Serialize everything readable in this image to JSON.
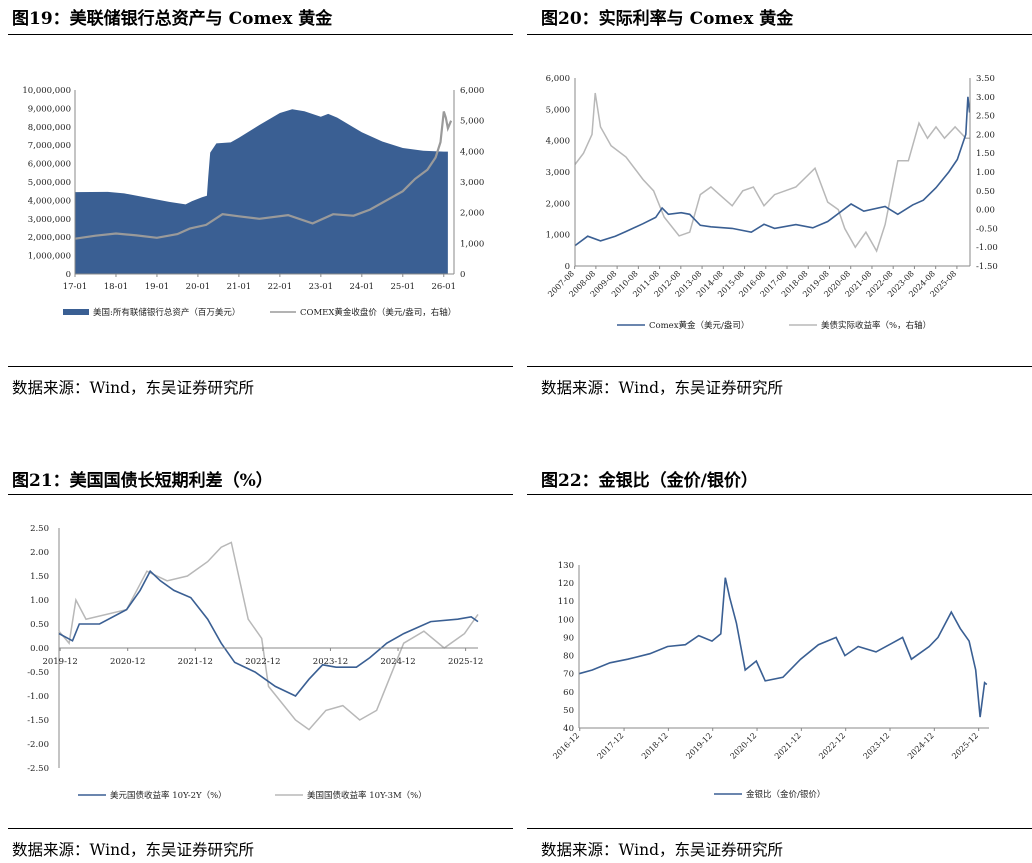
{
  "source": "数据来源：Wind，东吴证券研究所",
  "colors": {
    "navy": "#3a5f93",
    "gray": "#9a9a9a",
    "lightgray": "#b8b8b8"
  },
  "chart_data": [
    {
      "id": "fig19",
      "title": "图19：美联储银行总资产与 Comex 黄金",
      "type": "area",
      "x": [
        "17-01",
        "18-01",
        "19-01",
        "20-01",
        "21-01",
        "22-01",
        "23-01",
        "24-01",
        "25-01",
        "26-01"
      ],
      "xlim": [
        2017.0,
        2026.25
      ],
      "y_left": {
        "range": [
          0,
          10000000
        ],
        "ticks": [
          "0",
          "1,000,000",
          "2,000,000",
          "3,000,000",
          "4,000,000",
          "5,000,000",
          "6,000,000",
          "7,000,000",
          "8,000,000",
          "9,000,000",
          "10,000,000"
        ]
      },
      "y_right": {
        "range": [
          0,
          6000
        ],
        "ticks": [
          "0",
          "1,000",
          "2,000",
          "3,000",
          "4,000",
          "5,000",
          "6,000"
        ]
      },
      "series": [
        {
          "name": "美国:所有联储银行总资产（百万美元）",
          "axis": "left",
          "points": [
            [
              2017.0,
              4450000
            ],
            [
              2017.8,
              4460000
            ],
            [
              2018.2,
              4380000
            ],
            [
              2018.8,
              4130000
            ],
            [
              2019.3,
              3920000
            ],
            [
              2019.7,
              3780000
            ],
            [
              2019.85,
              3950000
            ],
            [
              2020.1,
              4170000
            ],
            [
              2020.22,
              4250000
            ],
            [
              2020.25,
              5250000
            ],
            [
              2020.3,
              6600000
            ],
            [
              2020.45,
              7100000
            ],
            [
              2020.8,
              7150000
            ],
            [
              2021.0,
              7400000
            ],
            [
              2021.5,
              8100000
            ],
            [
              2022.0,
              8750000
            ],
            [
              2022.3,
              8950000
            ],
            [
              2022.6,
              8850000
            ],
            [
              2023.0,
              8550000
            ],
            [
              2023.18,
              8700000
            ],
            [
              2023.4,
              8500000
            ],
            [
              2024.0,
              7700000
            ],
            [
              2024.5,
              7200000
            ],
            [
              2025.0,
              6850000
            ],
            [
              2025.5,
              6700000
            ],
            [
              2026.0,
              6650000
            ],
            [
              2026.1,
              6650000
            ]
          ]
        },
        {
          "name": "COMEX黄金收盘价（美元/盎司，右轴）",
          "axis": "right",
          "points": [
            [
              2017.0,
              1150
            ],
            [
              2017.5,
              1250
            ],
            [
              2018.0,
              1320
            ],
            [
              2018.5,
              1260
            ],
            [
              2019.0,
              1180
            ],
            [
              2019.5,
              1300
            ],
            [
              2019.8,
              1480
            ],
            [
              2020.2,
              1600
            ],
            [
              2020.6,
              1950
            ],
            [
              2021.0,
              1880
            ],
            [
              2021.5,
              1800
            ],
            [
              2022.2,
              1920
            ],
            [
              2022.8,
              1650
            ],
            [
              2023.3,
              1950
            ],
            [
              2023.8,
              1900
            ],
            [
              2024.2,
              2100
            ],
            [
              2024.6,
              2400
            ],
            [
              2025.0,
              2700
            ],
            [
              2025.3,
              3100
            ],
            [
              2025.6,
              3400
            ],
            [
              2025.8,
              3800
            ],
            [
              2025.92,
              4300
            ],
            [
              2026.0,
              5300
            ],
            [
              2026.05,
              5100
            ],
            [
              2026.1,
              4750
            ],
            [
              2026.18,
              5000
            ]
          ]
        }
      ],
      "legend_position": "bottom"
    },
    {
      "id": "fig20",
      "title": "图20：实际利率与 Comex 黄金",
      "type": "line",
      "x": [
        "2007-08",
        "2008-08",
        "2009-08",
        "2010-08",
        "2011-08",
        "2012-08",
        "2013-08",
        "2014-08",
        "2015-08",
        "2016-08",
        "2017-08",
        "2018-08",
        "2019-08",
        "2020-08",
        "2021-08",
        "2022-08",
        "2023-08",
        "2024-08",
        "2025-08"
      ],
      "xlim": [
        2007.6,
        2026.2
      ],
      "y_left": {
        "range": [
          0,
          6000
        ],
        "ticks": [
          "0",
          "1,000",
          "2,000",
          "3,000",
          "4,000",
          "5,000",
          "6,000"
        ]
      },
      "y_right": {
        "range": [
          -1.5,
          3.5
        ],
        "ticks": [
          "-1.50",
          "-1.00",
          "-0.50",
          "0.00",
          "0.50",
          "1.00",
          "1.50",
          "2.00",
          "2.50",
          "3.00",
          "3.50"
        ]
      },
      "series": [
        {
          "name": "Comex黄金（美元/盎司）",
          "axis": "left",
          "points": [
            [
              2007.6,
              650
            ],
            [
              2008.2,
              950
            ],
            [
              2008.8,
              800
            ],
            [
              2009.5,
              950
            ],
            [
              2010.0,
              1100
            ],
            [
              2010.8,
              1350
            ],
            [
              2011.4,
              1550
            ],
            [
              2011.7,
              1850
            ],
            [
              2012.0,
              1650
            ],
            [
              2012.6,
              1700
            ],
            [
              2013.0,
              1650
            ],
            [
              2013.5,
              1300
            ],
            [
              2014.0,
              1250
            ],
            [
              2015.0,
              1200
            ],
            [
              2015.9,
              1080
            ],
            [
              2016.5,
              1330
            ],
            [
              2017.0,
              1200
            ],
            [
              2018.0,
              1320
            ],
            [
              2018.8,
              1220
            ],
            [
              2019.5,
              1420
            ],
            [
              2020.6,
              1980
            ],
            [
              2021.2,
              1750
            ],
            [
              2022.2,
              1900
            ],
            [
              2022.8,
              1650
            ],
            [
              2023.5,
              1950
            ],
            [
              2024.0,
              2100
            ],
            [
              2024.6,
              2500
            ],
            [
              2025.2,
              3000
            ],
            [
              2025.6,
              3400
            ],
            [
              2026.0,
              4200
            ],
            [
              2026.1,
              5400
            ],
            [
              2026.18,
              4900
            ]
          ]
        },
        {
          "name": "美债实际收益率（%，右轴）",
          "axis": "right",
          "points": [
            [
              2007.6,
              1.2
            ],
            [
              2008.0,
              1.5
            ],
            [
              2008.4,
              2.0
            ],
            [
              2008.55,
              3.1
            ],
            [
              2008.8,
              2.2
            ],
            [
              2009.3,
              1.7
            ],
            [
              2010.0,
              1.4
            ],
            [
              2010.8,
              0.8
            ],
            [
              2011.3,
              0.5
            ],
            [
              2011.8,
              -0.2
            ],
            [
              2012.5,
              -0.7
            ],
            [
              2013.0,
              -0.6
            ],
            [
              2013.5,
              0.4
            ],
            [
              2014.0,
              0.6
            ],
            [
              2014.6,
              0.3
            ],
            [
              2015.0,
              0.1
            ],
            [
              2015.5,
              0.5
            ],
            [
              2016.0,
              0.6
            ],
            [
              2016.5,
              0.1
            ],
            [
              2017.0,
              0.4
            ],
            [
              2018.0,
              0.6
            ],
            [
              2018.9,
              1.1
            ],
            [
              2019.5,
              0.2
            ],
            [
              2020.0,
              0.0
            ],
            [
              2020.3,
              -0.5
            ],
            [
              2020.8,
              -1.0
            ],
            [
              2021.3,
              -0.6
            ],
            [
              2021.8,
              -1.1
            ],
            [
              2022.2,
              -0.4
            ],
            [
              2022.8,
              1.3
            ],
            [
              2023.3,
              1.3
            ],
            [
              2023.8,
              2.3
            ],
            [
              2024.2,
              1.9
            ],
            [
              2024.6,
              2.2
            ],
            [
              2025.0,
              1.9
            ],
            [
              2025.5,
              2.2
            ],
            [
              2026.0,
              1.9
            ],
            [
              2026.18,
              1.9
            ]
          ]
        }
      ],
      "legend_position": "bottom"
    },
    {
      "id": "fig21",
      "title": "图21：美国国债长短期利差（%）",
      "type": "line",
      "x": [
        "2019-12",
        "2020-12",
        "2021-12",
        "2022-12",
        "2023-12",
        "2024-12",
        "2025-12"
      ],
      "xlim": [
        2019.9,
        2026.1
      ],
      "ylim": [
        -2.5,
        2.5
      ],
      "yticks": [
        "2.50",
        "2.00",
        "1.50",
        "1.00",
        "0.50",
        "0.00",
        "-0.50",
        "-1.00",
        "-1.50",
        "-2.00",
        "-2.50"
      ],
      "series": [
        {
          "name": "美元国债收益率 10Y-2Y（%）",
          "points": [
            [
              2019.9,
              0.3
            ],
            [
              2020.1,
              0.15
            ],
            [
              2020.2,
              0.5
            ],
            [
              2020.5,
              0.5
            ],
            [
              2020.9,
              0.8
            ],
            [
              2021.1,
              1.2
            ],
            [
              2021.25,
              1.6
            ],
            [
              2021.4,
              1.4
            ],
            [
              2021.6,
              1.2
            ],
            [
              2021.85,
              1.05
            ],
            [
              2022.1,
              0.6
            ],
            [
              2022.3,
              0.1
            ],
            [
              2022.5,
              -0.3
            ],
            [
              2022.8,
              -0.5
            ],
            [
              2023.1,
              -0.8
            ],
            [
              2023.4,
              -1.0
            ],
            [
              2023.6,
              -0.65
            ],
            [
              2023.8,
              -0.35
            ],
            [
              2024.0,
              -0.4
            ],
            [
              2024.3,
              -0.4
            ],
            [
              2024.5,
              -0.2
            ],
            [
              2024.75,
              0.1
            ],
            [
              2025.0,
              0.3
            ],
            [
              2025.4,
              0.55
            ],
            [
              2025.8,
              0.6
            ],
            [
              2026.0,
              0.65
            ],
            [
              2026.1,
              0.55
            ]
          ]
        },
        {
          "name": "美国国债收益率 10Y-3M（%）",
          "points": [
            [
              2019.9,
              0.35
            ],
            [
              2020.05,
              0.1
            ],
            [
              2020.15,
              1.0
            ],
            [
              2020.3,
              0.6
            ],
            [
              2020.9,
              0.8
            ],
            [
              2021.2,
              1.6
            ],
            [
              2021.5,
              1.4
            ],
            [
              2021.8,
              1.5
            ],
            [
              2022.1,
              1.8
            ],
            [
              2022.3,
              2.1
            ],
            [
              2022.45,
              2.2
            ],
            [
              2022.7,
              0.6
            ],
            [
              2022.9,
              0.2
            ],
            [
              2023.0,
              -0.8
            ],
            [
              2023.4,
              -1.5
            ],
            [
              2023.6,
              -1.7
            ],
            [
              2023.85,
              -1.3
            ],
            [
              2024.1,
              -1.2
            ],
            [
              2024.35,
              -1.5
            ],
            [
              2024.6,
              -1.3
            ],
            [
              2024.8,
              -0.6
            ],
            [
              2025.0,
              0.1
            ],
            [
              2025.3,
              0.35
            ],
            [
              2025.6,
              0.0
            ],
            [
              2025.9,
              0.3
            ],
            [
              2026.0,
              0.5
            ],
            [
              2026.1,
              0.7
            ]
          ]
        }
      ],
      "legend_position": "bottom"
    },
    {
      "id": "fig22",
      "title": "图22：金银比（金价/银价）",
      "type": "line",
      "x": [
        "2016-12",
        "2017-12",
        "2018-12",
        "2019-12",
        "2020-12",
        "2021-12",
        "2022-12",
        "2023-12",
        "2024-12",
        "2025-12"
      ],
      "xlim": [
        2016.9,
        2026.15
      ],
      "ylim": [
        40,
        130
      ],
      "yticks": [
        "40",
        "50",
        "60",
        "70",
        "80",
        "90",
        "100",
        "110",
        "120",
        "130"
      ],
      "series": [
        {
          "name": "金银比（金价/银价）",
          "points": [
            [
              2016.9,
              70
            ],
            [
              2017.2,
              72
            ],
            [
              2017.6,
              76
            ],
            [
              2018.0,
              78
            ],
            [
              2018.5,
              81
            ],
            [
              2018.9,
              85
            ],
            [
              2019.3,
              86
            ],
            [
              2019.6,
              91
            ],
            [
              2019.9,
              88
            ],
            [
              2020.1,
              92
            ],
            [
              2020.2,
              123
            ],
            [
              2020.3,
              112
            ],
            [
              2020.45,
              98
            ],
            [
              2020.55,
              85
            ],
            [
              2020.65,
              72
            ],
            [
              2020.9,
              77
            ],
            [
              2021.1,
              66
            ],
            [
              2021.5,
              68
            ],
            [
              2021.9,
              78
            ],
            [
              2022.3,
              86
            ],
            [
              2022.7,
              90
            ],
            [
              2022.9,
              80
            ],
            [
              2023.2,
              85
            ],
            [
              2023.6,
              82
            ],
            [
              2023.9,
              86
            ],
            [
              2024.2,
              90
            ],
            [
              2024.4,
              78
            ],
            [
              2024.8,
              85
            ],
            [
              2025.0,
              90
            ],
            [
              2025.3,
              104
            ],
            [
              2025.5,
              95
            ],
            [
              2025.7,
              88
            ],
            [
              2025.85,
              72
            ],
            [
              2025.95,
              46
            ],
            [
              2026.05,
              65
            ],
            [
              2026.1,
              64
            ]
          ]
        }
      ],
      "legend_position": "bottom"
    }
  ]
}
